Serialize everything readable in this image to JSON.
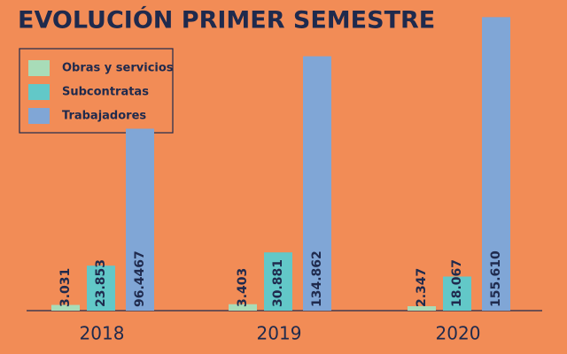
{
  "chart_data": {
    "type": "bar",
    "title": "EVOLUCIÓN PRIMER SEMESTRE",
    "categories": [
      "2018",
      "2019",
      "2020"
    ],
    "series": [
      {
        "name": "Obras y servicios",
        "color": "#a8dcb8",
        "values": [
          3.031,
          3.403,
          2.347
        ],
        "value_labels": [
          "3.031",
          "3.403",
          "2.347"
        ]
      },
      {
        "name": "Subcontratas",
        "color": "#62c8c8",
        "values": [
          23.853,
          30.881,
          18.067
        ],
        "value_labels": [
          "23.853",
          "30.881",
          "18.067"
        ]
      },
      {
        "name": "Trabajadores",
        "color": "#80a6d6",
        "values": [
          96.4467,
          134.862,
          155.61
        ],
        "value_labels": [
          "96.4467",
          "134.862",
          "155.610"
        ]
      }
    ],
    "ylim": [
      0,
      160
    ],
    "legend": "upper left"
  }
}
